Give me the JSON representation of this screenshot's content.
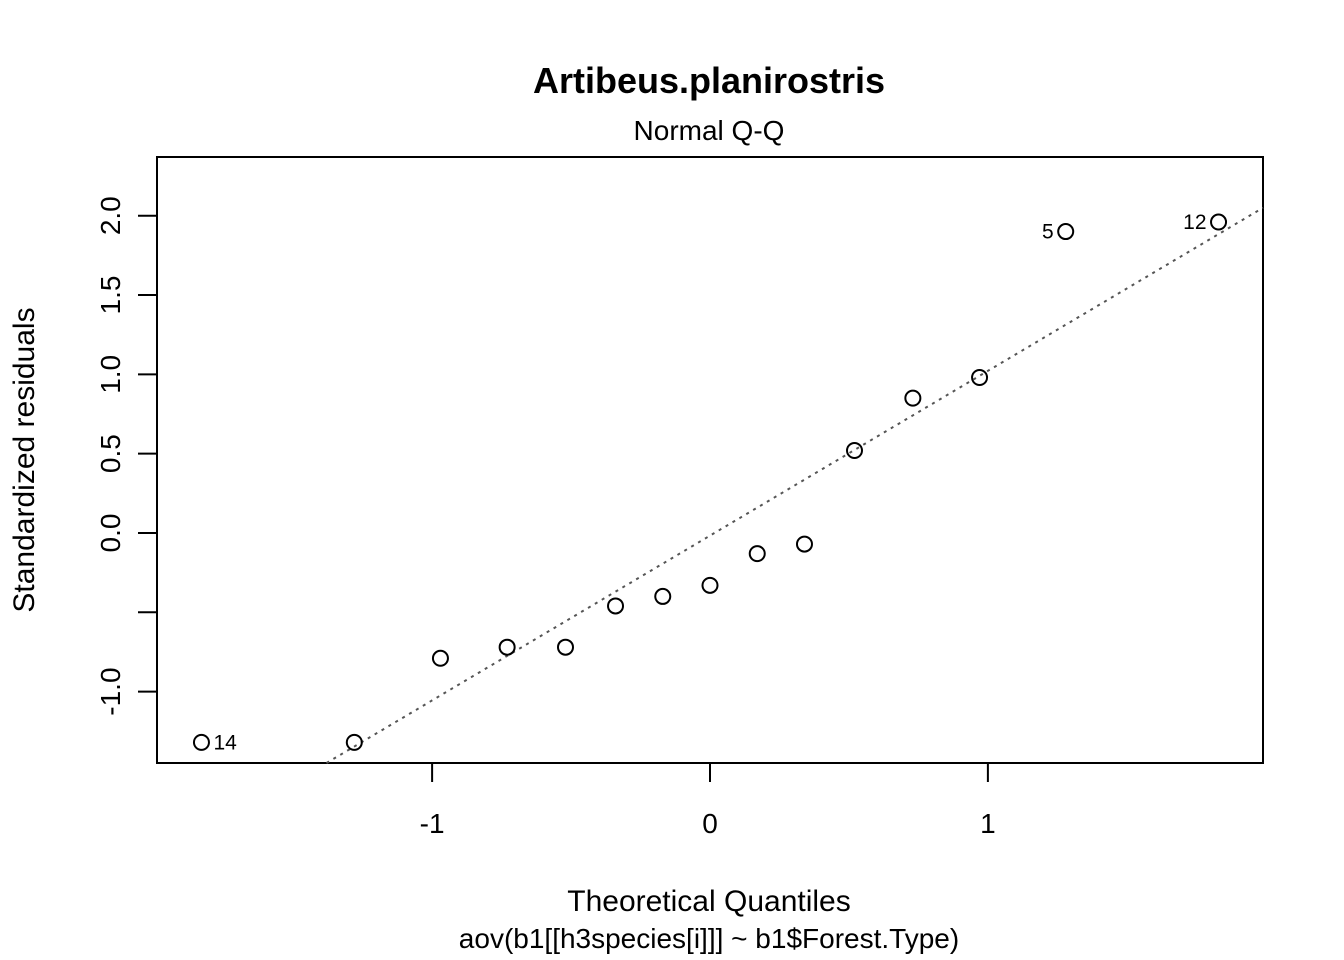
{
  "chart_data": {
    "type": "scatter",
    "title": "Artibeus.planirostris",
    "subtitle": "Normal Q-Q",
    "xlabel": "Theoretical Quantiles",
    "ylabel": "Standardized residuals",
    "caption": "aov(b1[[h3species[i]]] ~ b1$Forest.Type)",
    "xlim": [
      -1.99,
      1.99
    ],
    "ylim": [
      -1.45,
      2.37
    ],
    "x_ticks": [
      {
        "value": -1,
        "label": "-1"
      },
      {
        "value": 0,
        "label": "0"
      },
      {
        "value": 1,
        "label": "1"
      }
    ],
    "y_ticks": [
      {
        "value": -1.0,
        "label": "-1.0"
      },
      {
        "value": -0.5,
        "label": ""
      },
      {
        "value": 0.0,
        "label": "0.0"
      },
      {
        "value": 0.5,
        "label": "0.5"
      },
      {
        "value": 1.0,
        "label": "1.0"
      },
      {
        "value": 1.5,
        "label": "1.5"
      },
      {
        "value": 2.0,
        "label": "2.0"
      }
    ],
    "points": [
      {
        "x": -1.83,
        "y": -1.32,
        "label": "14"
      },
      {
        "x": -1.28,
        "y": -1.32,
        "label": ""
      },
      {
        "x": -0.97,
        "y": -0.79,
        "label": ""
      },
      {
        "x": -0.73,
        "y": -0.72,
        "label": ""
      },
      {
        "x": -0.52,
        "y": -0.72,
        "label": ""
      },
      {
        "x": -0.34,
        "y": -0.46,
        "label": ""
      },
      {
        "x": -0.17,
        "y": -0.4,
        "label": ""
      },
      {
        "x": 0.0,
        "y": -0.33,
        "label": ""
      },
      {
        "x": 0.17,
        "y": -0.13,
        "label": ""
      },
      {
        "x": 0.34,
        "y": -0.07,
        "label": ""
      },
      {
        "x": 0.52,
        "y": 0.52,
        "label": ""
      },
      {
        "x": 0.73,
        "y": 0.85,
        "label": ""
      },
      {
        "x": 0.97,
        "y": 0.98,
        "label": ""
      },
      {
        "x": 1.28,
        "y": 1.9,
        "label": "5"
      },
      {
        "x": 1.83,
        "y": 1.96,
        "label": "12"
      }
    ],
    "reference_line": {
      "style": "dotted",
      "color": "#555555",
      "x": [
        -1.38,
        1.99
      ],
      "y": [
        -1.45,
        2.05
      ]
    }
  }
}
